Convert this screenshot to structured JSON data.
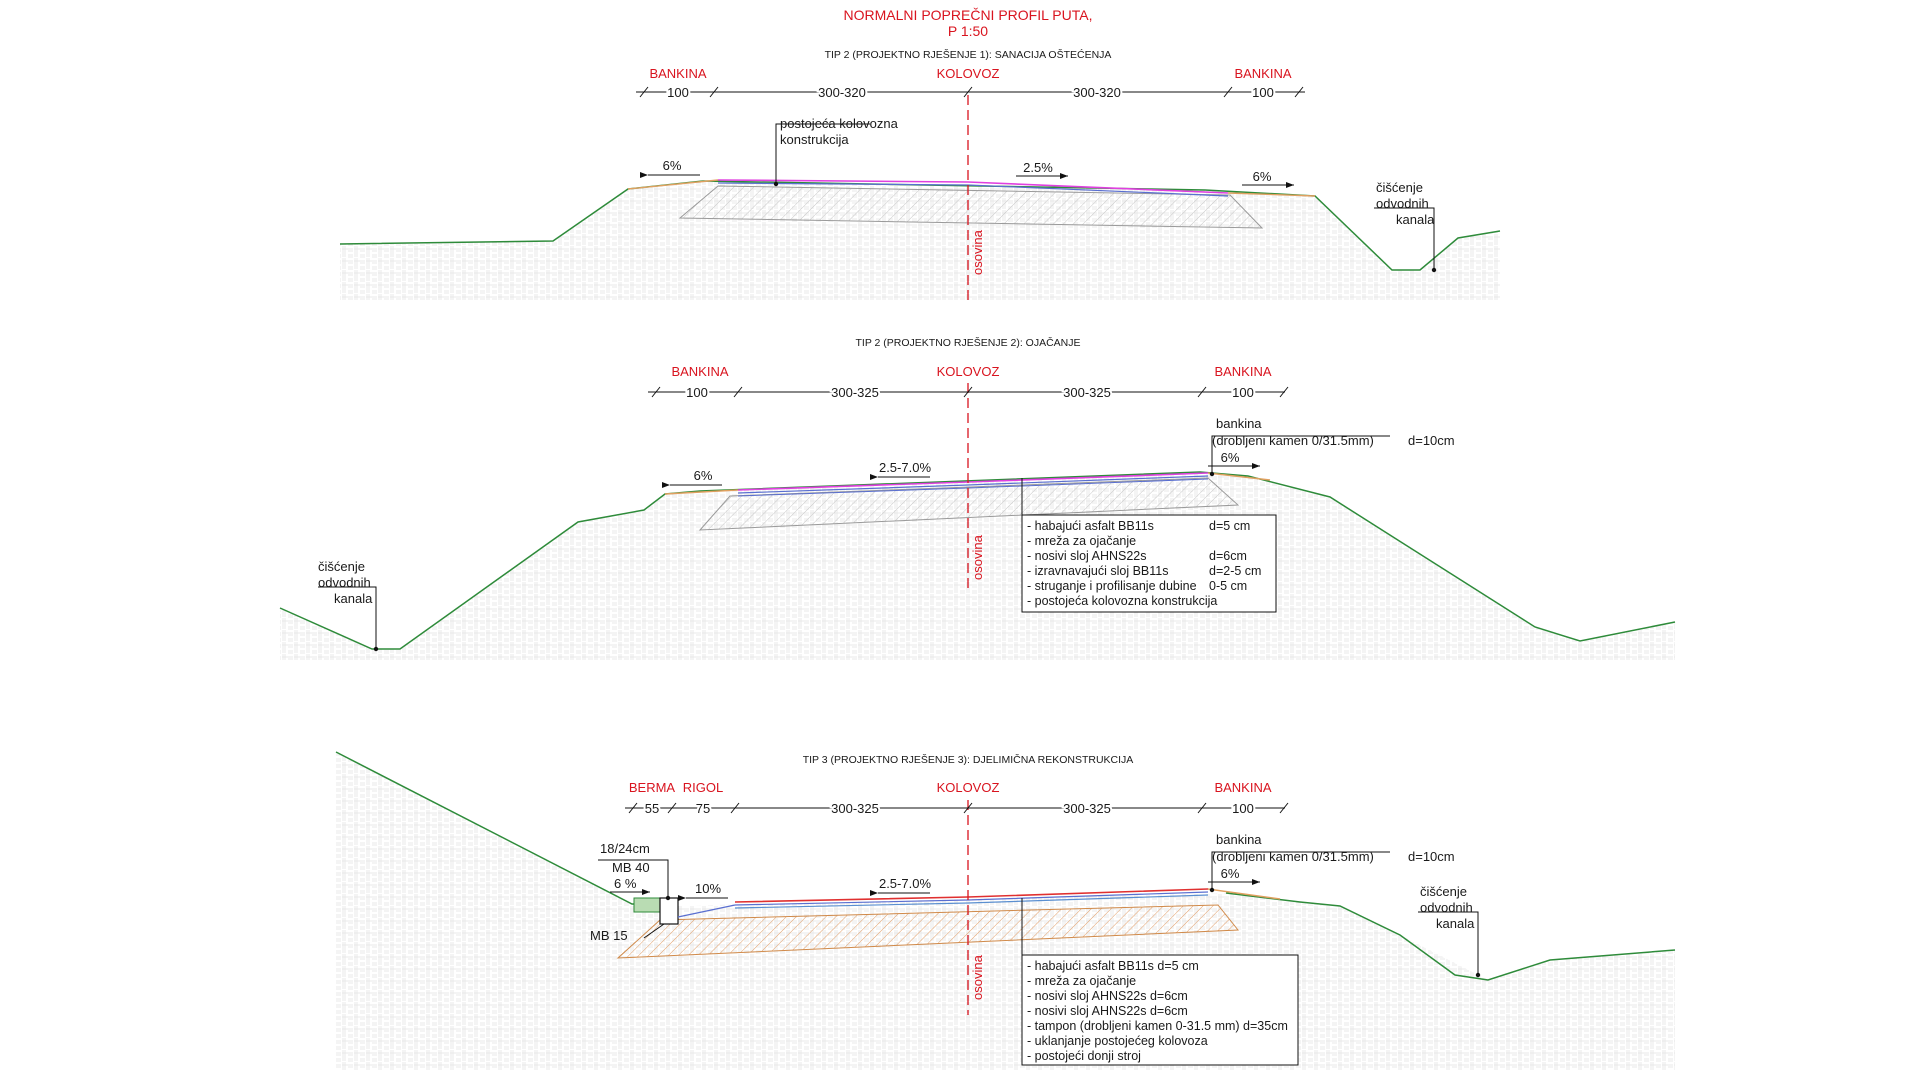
{
  "title": {
    "line1": "NORMALNI POPREČNI PROFIL PUTA,",
    "line2": "P 1:50"
  },
  "colors": {
    "terrain": "#2e8b3a",
    "label_red": "#d9141f",
    "axis": "#d9141f",
    "wearing": "#e040e0",
    "asphalt_blue": "#5a6fd0",
    "hatch": "#cfcfcf",
    "tampon": "#e0a070"
  },
  "section1": {
    "heading": "TIP 2 (PROJEKTNO RJEŠENJE 1): SANACIJA OŠTEĆENJA",
    "bankina_left": "BANKINA",
    "kolovoz": "KOLOVOZ",
    "bankina_right": "BANKINA",
    "dim_left_bank": "100",
    "dim_left_lane": "300-320",
    "dim_right_lane": "300-320",
    "dim_right_bank": "100",
    "existing_note_1": "postojeća kolovozna",
    "existing_note_2": "konstrukcija",
    "slope_left": "6%",
    "slope_lane": "2.5%",
    "slope_right": "6%",
    "axis_label": "osovina",
    "ditch_1": "čišćenje",
    "ditch_2": "odvodnih",
    "ditch_3": "kanala"
  },
  "section2": {
    "heading": "TIP 2 (PROJEKTNO RJEŠENJE 2): OJAČANJE",
    "bankina_left": "BANKINA",
    "kolovoz": "KOLOVOZ",
    "bankina_right": "BANKINA",
    "dim_left_bank": "100",
    "dim_left_lane": "300-325",
    "dim_right_lane": "300-325",
    "dim_right_bank": "100",
    "shoulder_note_1": "bankina",
    "shoulder_note_2": "(drobljeni kamen 0/31.5mm)",
    "shoulder_note_d": "d=10cm",
    "slope_left": "6%",
    "slope_lane": "2.5-7.0%",
    "slope_right": "6%",
    "axis_label": "osovina",
    "ditch_1": "čišćenje",
    "ditch_2": "odvodnih",
    "ditch_3": "kanala",
    "layers": [
      "- habajući asfalt BB11s",
      "- mreža za ojačanje",
      "- nosivi sloj AHNS22s",
      "- izravnavajući sloj BB11s",
      "- struganje i profilisanje dubine",
      "- postojeća kolovozna konstrukcija"
    ],
    "thickness": [
      "d=5 cm",
      "",
      "d=6cm",
      "d=2-5 cm",
      "0-5 cm",
      ""
    ]
  },
  "section3": {
    "heading": "TIP 3 (PROJEKTNO RJEŠENJE 3): DJELIMIČNA REKONSTRUKCIJA",
    "berma": "BERMA",
    "rigol": "RIGOL",
    "kolovoz": "KOLOVOZ",
    "bankina_right": "BANKINA",
    "dim_berma": "55",
    "dim_rigol": "75",
    "dim_left_lane": "300-325",
    "dim_right_lane": "300-325",
    "dim_right_bank": "100",
    "curb_size": "18/24cm",
    "curb_mb": "MB 40",
    "berm_slope": "6 %",
    "rigol_slope": "10%",
    "base_mb": "MB 15",
    "shoulder_note_1": "bankina",
    "shoulder_note_2": "(drobljeni kamen 0/31.5mm)",
    "shoulder_note_d": "d=10cm",
    "slope_lane": "2.5-7.0%",
    "slope_right": "6%",
    "axis_label": "osovina",
    "ditch_1": "čišćenje",
    "ditch_2": "odvodnih",
    "ditch_3": "kanala",
    "layers": [
      "- habajući asfalt BB11s  d=5 cm",
      "- mreža za ojačanje",
      "- nosivi sloj AHNS22s d=6cm",
      "- nosivi sloj AHNS22s d=6cm",
      "- tampon (drobljeni kamen 0-31.5 mm) d=35cm",
      "- uklanjanje postojećeg kolovoza",
      "- postojeći donji stroj"
    ]
  }
}
